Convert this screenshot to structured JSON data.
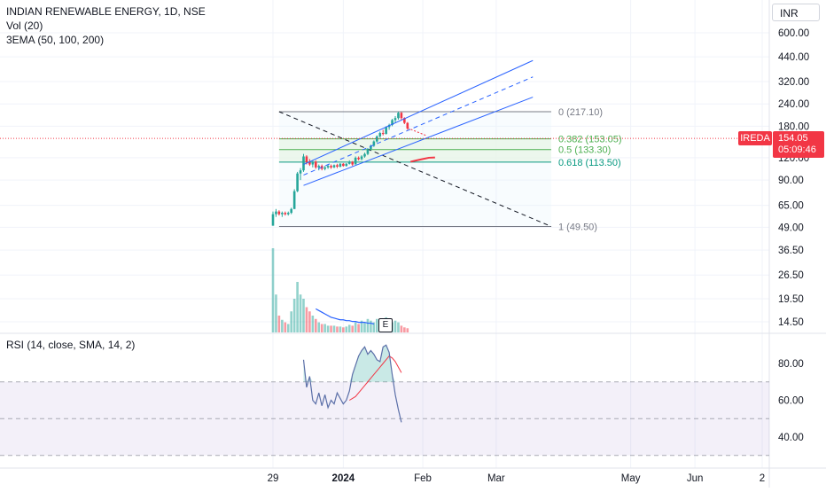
{
  "header": {
    "title": "INDIAN RENEWABLE ENERGY, 1D, NSE",
    "vol_label": "Vol (20)",
    "ema_label": "3EMA (50, 100, 200)",
    "currency": "INR"
  },
  "price_tag": {
    "symbol": "IREDA",
    "price": "154.05",
    "countdown": "05:09:46"
  },
  "colors": {
    "up": "#26a69a",
    "down": "#f23645",
    "channel": "#2962ff",
    "rsi_line": "#5b6fa8",
    "rsi_ma": "#f23645",
    "rsi_band": "#7e57c2",
    "fib_mid": "#4caf50"
  },
  "earnings_badge": "E",
  "rsi_label": "RSI (14, close, SMA, 14, 2)",
  "fib_labels": [
    "0 (217.10)",
    "0.382 (153.05)",
    "0.5 (133.30)",
    "0.618 (113.50)",
    "1 (49.50)"
  ],
  "chart_data": [
    {
      "type": "candlestick",
      "scale": "log",
      "y_ticks": [
        "600.00",
        "440.00",
        "320.00",
        "240.00",
        "180.00",
        "120.00",
        "90.00",
        "65.00",
        "49.00",
        "36.50",
        "26.50",
        "19.50",
        "14.50"
      ],
      "y_tick_values": [
        600,
        440,
        320,
        240,
        180,
        120,
        90,
        65,
        49,
        36.5,
        26.5,
        19.5,
        14.5
      ],
      "x_ticks": [
        "29",
        "2024",
        "Feb",
        "Mar",
        "May",
        "Jun",
        "2"
      ],
      "x_tick_index": [
        0,
        23,
        49,
        73,
        117,
        138,
        160
      ],
      "last_price": 154.05,
      "candles": [
        {
          "o": 50,
          "h": 60,
          "l": 50,
          "c": 58,
          "v": 100
        },
        {
          "o": 58,
          "h": 62,
          "l": 56,
          "c": 60,
          "v": 45
        },
        {
          "o": 60,
          "h": 61,
          "l": 57,
          "c": 58,
          "v": 20
        },
        {
          "o": 58,
          "h": 60,
          "l": 56,
          "c": 59,
          "v": 15
        },
        {
          "o": 59,
          "h": 60,
          "l": 57,
          "c": 58,
          "v": 12
        },
        {
          "o": 58,
          "h": 60,
          "l": 57,
          "c": 59,
          "v": 10
        },
        {
          "o": 59,
          "h": 63,
          "l": 58,
          "c": 62,
          "v": 25
        },
        {
          "o": 62,
          "h": 80,
          "l": 62,
          "c": 78,
          "v": 40
        },
        {
          "o": 78,
          "h": 100,
          "l": 77,
          "c": 98,
          "v": 60
        },
        {
          "o": 98,
          "h": 105,
          "l": 90,
          "c": 102,
          "v": 45
        },
        {
          "o": 102,
          "h": 126,
          "l": 100,
          "c": 122,
          "v": 40
        },
        {
          "o": 122,
          "h": 124,
          "l": 110,
          "c": 113,
          "v": 30
        },
        {
          "o": 113,
          "h": 118,
          "l": 108,
          "c": 110,
          "v": 25
        },
        {
          "o": 110,
          "h": 116,
          "l": 106,
          "c": 114,
          "v": 20
        },
        {
          "o": 114,
          "h": 116,
          "l": 104,
          "c": 106,
          "v": 16
        },
        {
          "o": 106,
          "h": 110,
          "l": 102,
          "c": 108,
          "v": 12
        },
        {
          "o": 108,
          "h": 110,
          "l": 102,
          "c": 104,
          "v": 10
        },
        {
          "o": 104,
          "h": 108,
          "l": 102,
          "c": 106,
          "v": 10
        },
        {
          "o": 106,
          "h": 110,
          "l": 104,
          "c": 108,
          "v": 8
        },
        {
          "o": 108,
          "h": 110,
          "l": 104,
          "c": 106,
          "v": 8
        },
        {
          "o": 106,
          "h": 110,
          "l": 105,
          "c": 109,
          "v": 8
        },
        {
          "o": 109,
          "h": 111,
          "l": 105,
          "c": 107,
          "v": 7
        },
        {
          "o": 107,
          "h": 112,
          "l": 106,
          "c": 111,
          "v": 7
        },
        {
          "o": 111,
          "h": 112,
          "l": 107,
          "c": 108,
          "v": 6
        },
        {
          "o": 108,
          "h": 112,
          "l": 107,
          "c": 111,
          "v": 7
        },
        {
          "o": 111,
          "h": 116,
          "l": 110,
          "c": 114,
          "v": 9
        },
        {
          "o": 114,
          "h": 115,
          "l": 108,
          "c": 110,
          "v": 8
        },
        {
          "o": 110,
          "h": 122,
          "l": 110,
          "c": 120,
          "v": 12
        },
        {
          "o": 120,
          "h": 122,
          "l": 116,
          "c": 118,
          "v": 10
        },
        {
          "o": 118,
          "h": 124,
          "l": 116,
          "c": 122,
          "v": 14
        },
        {
          "o": 122,
          "h": 128,
          "l": 120,
          "c": 126,
          "v": 12
        },
        {
          "o": 126,
          "h": 136,
          "l": 124,
          "c": 134,
          "v": 16
        },
        {
          "o": 134,
          "h": 142,
          "l": 132,
          "c": 140,
          "v": 14
        },
        {
          "o": 140,
          "h": 150,
          "l": 138,
          "c": 148,
          "v": 12
        },
        {
          "o": 148,
          "h": 160,
          "l": 146,
          "c": 158,
          "v": 16
        },
        {
          "o": 158,
          "h": 168,
          "l": 155,
          "c": 165,
          "v": 12
        },
        {
          "o": 165,
          "h": 172,
          "l": 160,
          "c": 163,
          "v": 10
        },
        {
          "o": 163,
          "h": 180,
          "l": 162,
          "c": 178,
          "v": 18
        },
        {
          "o": 178,
          "h": 186,
          "l": 172,
          "c": 183,
          "v": 14
        },
        {
          "o": 183,
          "h": 198,
          "l": 180,
          "c": 195,
          "v": 12
        },
        {
          "o": 195,
          "h": 205,
          "l": 188,
          "c": 200,
          "v": 14
        },
        {
          "o": 200,
          "h": 217.1,
          "l": 196,
          "c": 214,
          "v": 12
        },
        {
          "o": 214,
          "h": 216,
          "l": 196,
          "c": 200,
          "v": 8
        },
        {
          "o": 200,
          "h": 202,
          "l": 185,
          "c": 188,
          "v": 6
        },
        {
          "o": 188,
          "h": 190,
          "l": 172,
          "c": 175,
          "v": 5
        }
      ],
      "volume_ma": [
        28,
        26,
        24,
        22,
        20,
        18,
        17,
        16,
        15,
        15,
        14,
        14,
        13,
        13,
        12,
        12,
        12,
        11,
        11,
        10
      ],
      "volume_ma_start": 14
    },
    {
      "type": "line",
      "name": "RSI",
      "y_ticks": [
        "80.00",
        "60.00",
        "40.00"
      ],
      "y_tick_values": [
        80,
        60,
        40
      ],
      "bands": [
        70,
        50,
        30
      ],
      "start_index": 10,
      "rsi": [
        82,
        67,
        73,
        60,
        58,
        64,
        57,
        63,
        56,
        60,
        58,
        64,
        61,
        58,
        60,
        65,
        74,
        79,
        84,
        87,
        89,
        85,
        87,
        85,
        82,
        81,
        89,
        90,
        86,
        74,
        63,
        55,
        48
      ],
      "rsi_ma": [
        null,
        null,
        null,
        null,
        null,
        null,
        null,
        null,
        null,
        null,
        null,
        null,
        null,
        null,
        null,
        60,
        61,
        62,
        64,
        66,
        68,
        70,
        72,
        74,
        76,
        78,
        80,
        82,
        84,
        83,
        81,
        78,
        75
      ]
    }
  ]
}
